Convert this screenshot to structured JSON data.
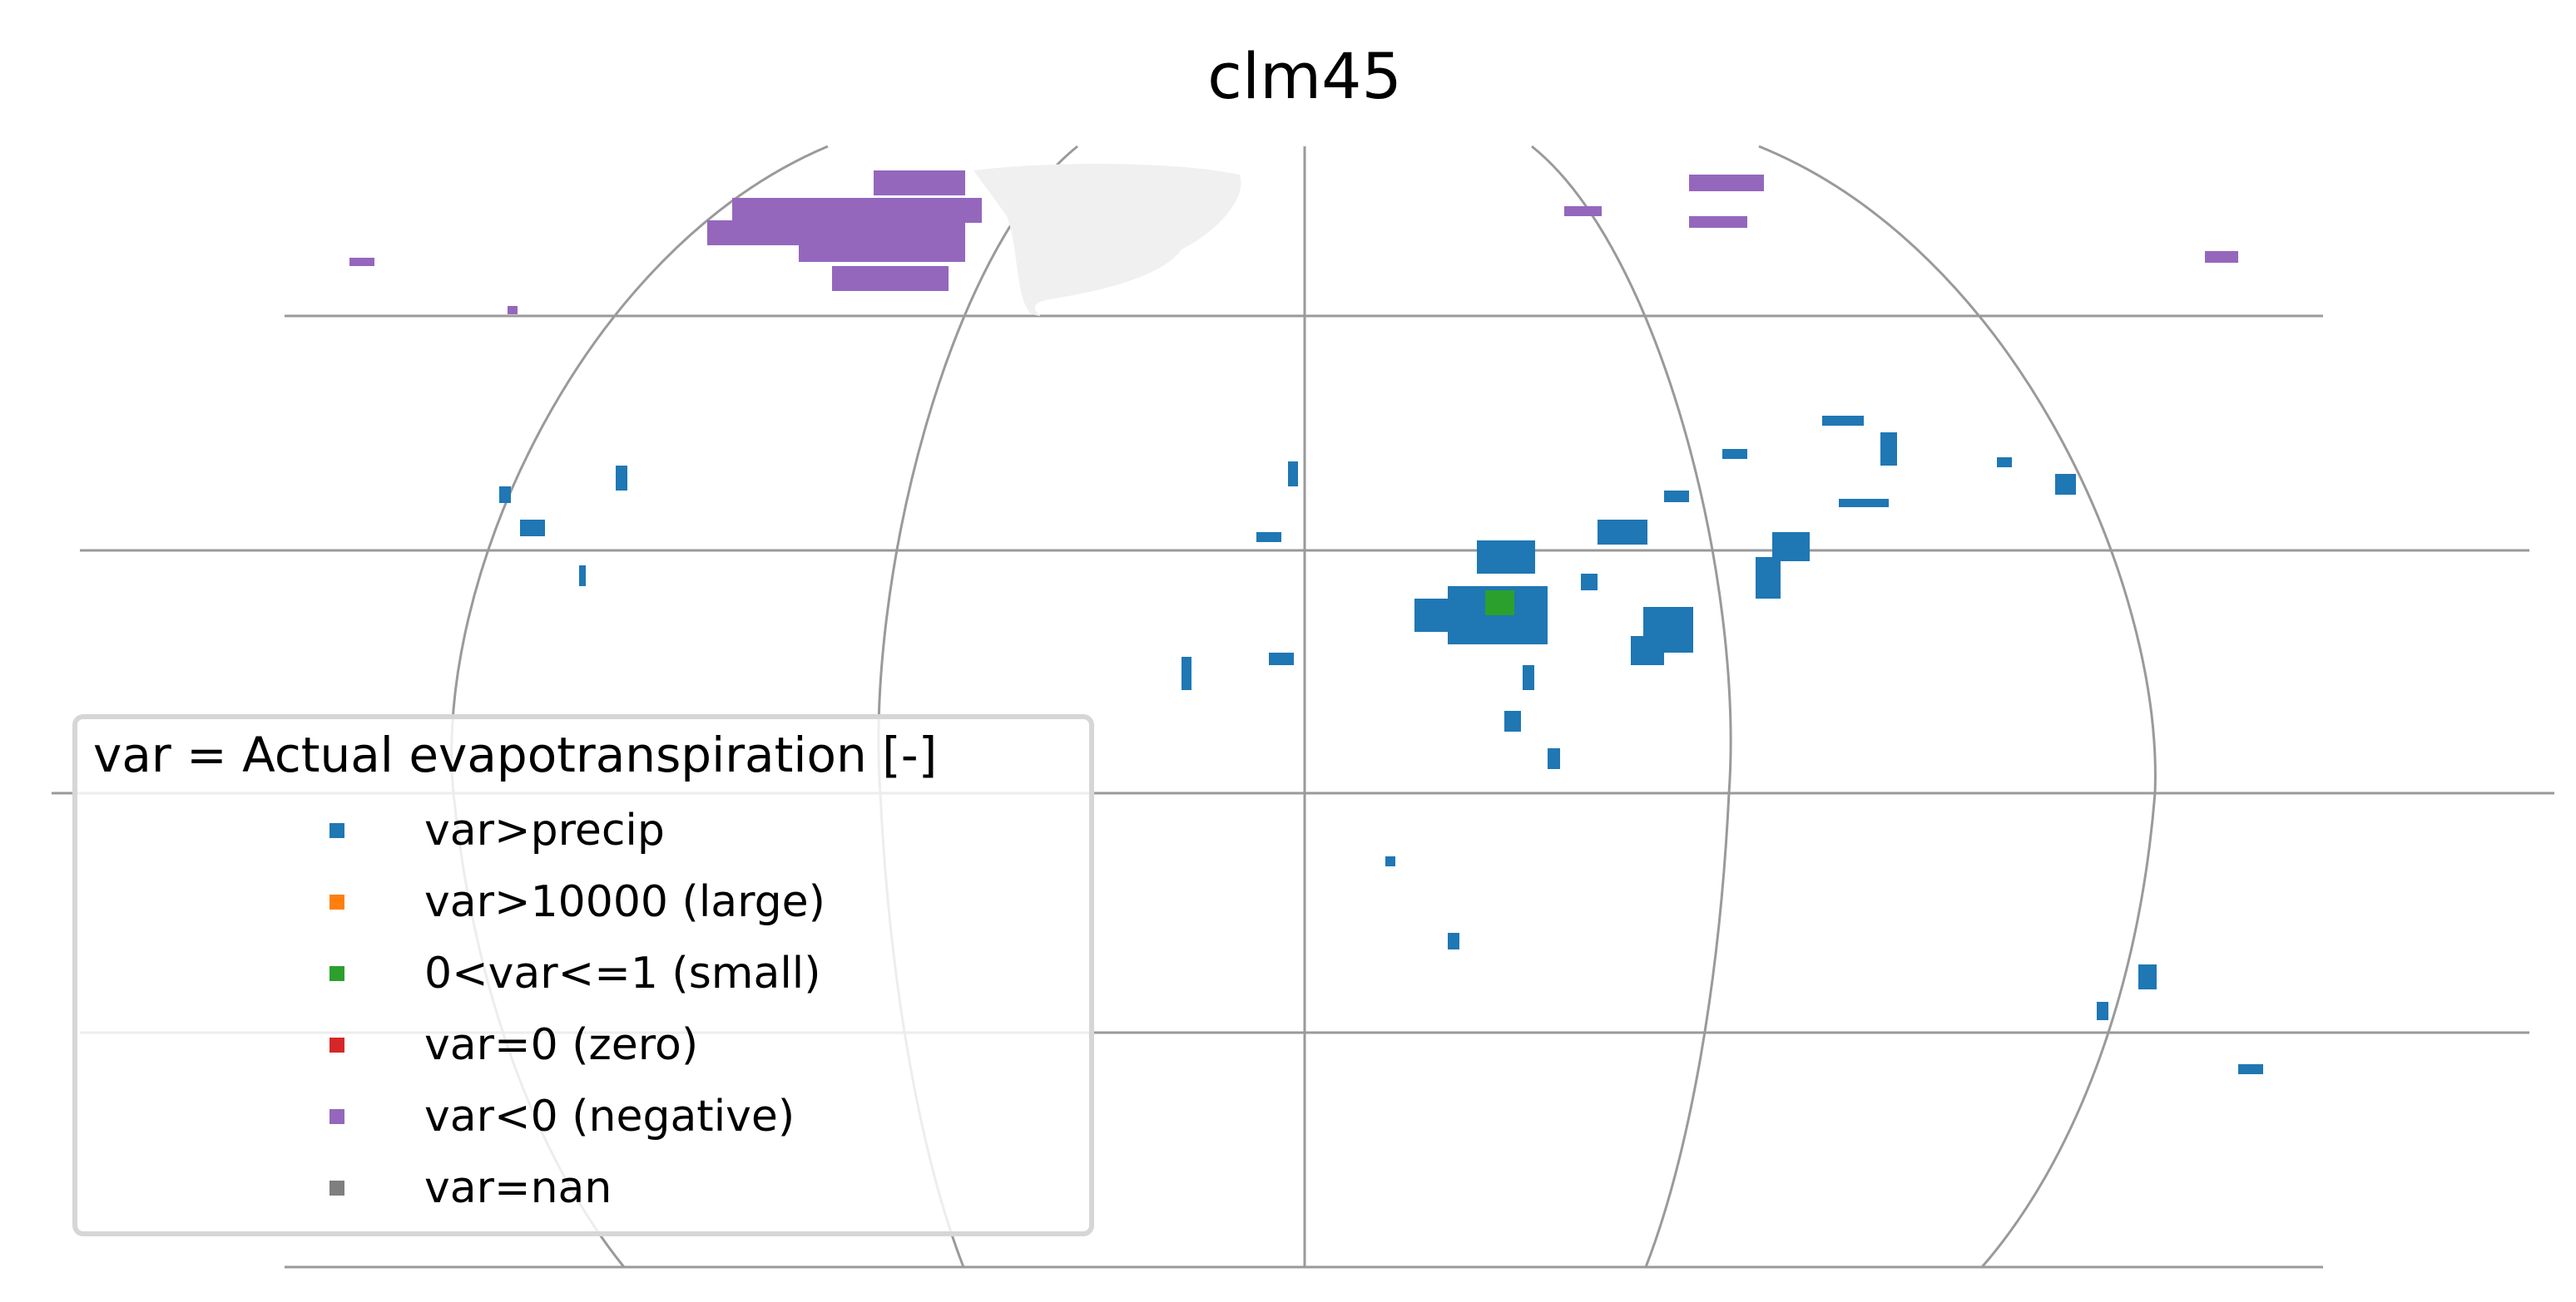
{
  "title": "clm45",
  "legend": {
    "title": "var = Actual evapotranspiration [-]",
    "entries": [
      {
        "label": "var>precip",
        "color": "#1f77b4"
      },
      {
        "label": "var>10000 (large)",
        "color": "#ff7f0e"
      },
      {
        "label": "0<var<=1 (small)",
        "color": "#2ca02c"
      },
      {
        "label": "var=0 (zero)",
        "color": "#d62728"
      },
      {
        "label": "var<0 (negative)",
        "color": "#9467bd"
      },
      {
        "label": "var=nan",
        "color": "#7f7f7f"
      }
    ]
  },
  "colors": {
    "graticule": "#9a9a9a",
    "land_mask": "#f0f0f0"
  }
}
